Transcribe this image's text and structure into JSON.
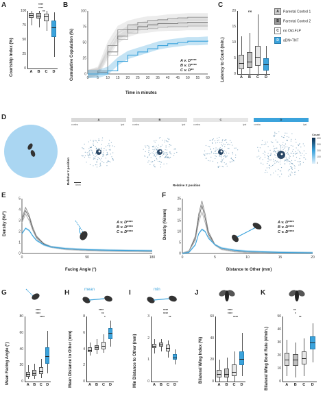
{
  "panels": {
    "A": {
      "letter": "A",
      "ylabel": "Courtship Index (%)",
      "yticks": [
        "0",
        "25",
        "50",
        "75",
        "100"
      ],
      "categories": [
        "A",
        "B",
        "C",
        "D"
      ],
      "sig": [
        "****",
        "****",
        "**"
      ]
    },
    "B": {
      "letter": "B",
      "ylabel": "Cumulative Copulation (%)",
      "xlabel": "Time in minutes",
      "yticks": [
        "0",
        "25",
        "50",
        "75",
        "100"
      ],
      "xticks": [
        "0",
        "5",
        "10",
        "15",
        "20",
        "25",
        "30",
        "35",
        "40",
        "45",
        "50",
        "55",
        "60"
      ],
      "stats": [
        {
          "label": "A v. D",
          "sig": "****"
        },
        {
          "label": "B v. D",
          "sig": "****"
        },
        {
          "label": "C v. D",
          "sig": "**"
        }
      ]
    },
    "C": {
      "letter": "C",
      "ylabel": "Latency to Court (min.)",
      "yticks": [
        "0",
        "5",
        "10",
        "15",
        "20"
      ],
      "categories": [
        "A",
        "B",
        "C",
        "D"
      ],
      "sig": [
        "ns"
      ]
    },
    "D": {
      "letter": "D",
      "ylabel": "Relative Y position",
      "xlabel": "Relative X position",
      "titles": [
        "A",
        "B",
        "C",
        "D"
      ],
      "contra": "contra",
      "ipsi": "ipsi",
      "scale": "5mm",
      "colorbar_title": "Count",
      "colorbar_ticks": [
        "400",
        "300",
        "200",
        "100",
        "0"
      ]
    },
    "E": {
      "letter": "E",
      "ylabel": "Density (%/°)",
      "xlabel": "Facing Angle (°)",
      "yticks": [
        "0",
        "1",
        "2",
        "3",
        "4",
        "5"
      ],
      "xticks": [
        "0",
        "90",
        "180"
      ],
      "stats": [
        {
          "label": "A v. D",
          "sig": "****"
        },
        {
          "label": "B v. D",
          "sig": "****"
        },
        {
          "label": "C v. D",
          "sig": "****"
        }
      ]
    },
    "F": {
      "letter": "F",
      "ylabel": "Density (%/mm)",
      "xlabel": "Distance to Other (mm)",
      "yticks": [
        "0",
        "5",
        "10",
        "15",
        "20",
        "25"
      ],
      "xticks": [
        "0",
        "5",
        "10",
        "15",
        "20"
      ],
      "stats": [
        {
          "label": "A v. D",
          "sig": "****"
        },
        {
          "label": "B v. D",
          "sig": "****"
        },
        {
          "label": "C v. D",
          "sig": "****"
        }
      ]
    },
    "G": {
      "letter": "G",
      "ylabel": "Mean Facing Angle (°)",
      "yticks": [
        "0",
        "20",
        "40",
        "60",
        "80"
      ],
      "categories": [
        "A",
        "B",
        "C",
        "D"
      ],
      "sig": [
        "****",
        "****",
        "****"
      ]
    },
    "H": {
      "letter": "H",
      "ylabel": "Mean Distance to Other (mm)",
      "yticks": [
        "0",
        "2",
        "4",
        "6",
        "8"
      ],
      "categories": [
        "A",
        "B",
        "C",
        "D"
      ],
      "sig": [
        "****",
        "**",
        "*"
      ],
      "icon_label": "mean"
    },
    "I": {
      "letter": "I",
      "ylabel": "Min Distance to Other (mm)",
      "yticks": [
        "0",
        "1",
        "2",
        "3"
      ],
      "categories": [
        "A",
        "B",
        "C",
        "D"
      ],
      "sig": [
        "****",
        "****",
        "**"
      ],
      "icon_label": "min"
    },
    "J": {
      "letter": "J",
      "ylabel": "Bilateral Wing Index (%)",
      "yticks": [
        "0",
        "20",
        "40",
        "60"
      ],
      "categories": [
        "A",
        "B",
        "C",
        "D"
      ],
      "sig": [
        "****",
        "****",
        "****"
      ]
    },
    "K": {
      "letter": "K",
      "ylabel": "Bilateral Wing Bout Rate (#/min.)",
      "yticks": [
        "0",
        "10",
        "20",
        "30",
        "40",
        "50"
      ],
      "categories": [
        "A",
        "B",
        "C",
        "D"
      ],
      "sig": [
        "**",
        "*",
        "**"
      ]
    }
  },
  "legend": [
    {
      "key": "A",
      "label": "Parental Control 1",
      "color": "#cccccc"
    },
    {
      "key": "B",
      "label": "Parental Control 2",
      "color": "#999999"
    },
    {
      "key": "C",
      "label": "no Otd-FLP",
      "color": "#ffffff"
    },
    {
      "key": "D",
      "label": "aDN>TNT",
      "color": "#3ba3dc"
    }
  ],
  "colors": {
    "A": "#d9d9d9",
    "B": "#bfbfbf",
    "C": "#e8e8e8",
    "D": "#3ba3dc",
    "axis": "#333333"
  },
  "chart_data": [
    {
      "type": "box",
      "panel": "A",
      "ylabel": "Courtship Index (%)",
      "categories": [
        "A",
        "B",
        "C",
        "D"
      ],
      "stats": [
        {
          "q1": 88,
          "median": 93,
          "q3": 97,
          "lo": 75,
          "hi": 100
        },
        {
          "q1": 87,
          "median": 92,
          "q3": 96,
          "lo": 72,
          "hi": 100
        },
        {
          "q1": 82,
          "median": 90,
          "q3": 95,
          "lo": 65,
          "hi": 100
        },
        {
          "q1": 55,
          "median": 72,
          "q3": 83,
          "lo": 20,
          "hi": 98
        }
      ]
    },
    {
      "type": "line",
      "panel": "B",
      "title": "",
      "xlabel": "Time in minutes",
      "ylabel": "Cumulative Copulation (%)",
      "x": [
        0,
        5,
        10,
        15,
        20,
        25,
        30,
        35,
        40,
        45,
        50,
        55,
        60
      ],
      "series": [
        {
          "name": "A",
          "values": [
            0,
            5,
            45,
            70,
            78,
            82,
            85,
            86,
            88,
            89,
            90,
            90,
            90
          ]
        },
        {
          "name": "B",
          "values": [
            0,
            3,
            35,
            60,
            70,
            75,
            78,
            80,
            80,
            81,
            82,
            82,
            82
          ]
        },
        {
          "name": "C",
          "values": [
            0,
            2,
            30,
            55,
            65,
            70,
            72,
            74,
            75,
            75,
            76,
            76,
            76
          ]
        },
        {
          "name": "D",
          "values": [
            0,
            0,
            5,
            20,
            30,
            35,
            40,
            45,
            48,
            50,
            52,
            52,
            53
          ]
        }
      ],
      "ylim": [
        0,
        100
      ]
    },
    {
      "type": "box",
      "panel": "C",
      "ylabel": "Latency to Court (min.)",
      "categories": [
        "A",
        "B",
        "C",
        "D"
      ],
      "stats": [
        {
          "q1": 1.5,
          "median": 3.5,
          "q3": 6,
          "lo": 0,
          "hi": 12
        },
        {
          "q1": 2,
          "median": 4,
          "q3": 7,
          "lo": 0,
          "hi": 13
        },
        {
          "q1": 2.5,
          "median": 5.5,
          "q3": 9,
          "lo": 0,
          "hi": 19
        },
        {
          "q1": 1,
          "median": 3,
          "q3": 5,
          "lo": 0,
          "hi": 9
        }
      ]
    },
    {
      "type": "line",
      "panel": "E",
      "xlabel": "Facing Angle (°)",
      "ylabel": "Density (%/°)",
      "x": [
        0,
        5,
        10,
        15,
        20,
        30,
        40,
        60,
        90,
        120,
        150,
        180
      ],
      "series": [
        {
          "name": "A",
          "values": [
            3.2,
            4.2,
            3.5,
            2.4,
            1.6,
            0.9,
            0.6,
            0.4,
            0.3,
            0.25,
            0.22,
            0.2
          ]
        },
        {
          "name": "B",
          "values": [
            3.0,
            3.9,
            3.3,
            2.2,
            1.5,
            0.9,
            0.6,
            0.4,
            0.3,
            0.25,
            0.22,
            0.2
          ]
        },
        {
          "name": "C",
          "values": [
            2.8,
            3.6,
            3.0,
            2.1,
            1.4,
            0.8,
            0.6,
            0.4,
            0.3,
            0.25,
            0.22,
            0.2
          ]
        },
        {
          "name": "D",
          "values": [
            1.8,
            2.3,
            2.1,
            1.6,
            1.2,
            0.8,
            0.6,
            0.45,
            0.35,
            0.3,
            0.27,
            0.25
          ]
        }
      ],
      "ylim": [
        0,
        5
      ]
    },
    {
      "type": "line",
      "panel": "F",
      "xlabel": "Distance to Other (mm)",
      "ylabel": "Density (%/mm)",
      "x": [
        0,
        1,
        2,
        2.5,
        3,
        3.5,
        4,
        5,
        6,
        8,
        10,
        15,
        20
      ],
      "series": [
        {
          "name": "A",
          "values": [
            0,
            1,
            8,
            18,
            24,
            18,
            10,
            4,
            2,
            1,
            0.6,
            0.3,
            0.2
          ]
        },
        {
          "name": "B",
          "values": [
            0,
            1,
            7,
            16,
            22,
            16,
            9,
            4,
            2,
            1,
            0.6,
            0.3,
            0.2
          ]
        },
        {
          "name": "C",
          "values": [
            0,
            1,
            6,
            14,
            19,
            14,
            8,
            4,
            2,
            1,
            0.6,
            0.3,
            0.2
          ]
        },
        {
          "name": "D",
          "values": [
            0,
            0.5,
            4,
            9,
            11,
            10,
            7,
            4,
            2.5,
            1.5,
            1,
            0.5,
            0.3
          ]
        }
      ],
      "ylim": [
        0,
        25
      ]
    },
    {
      "type": "box",
      "panel": "G",
      "ylabel": "Mean Facing Angle (°)",
      "categories": [
        "A",
        "B",
        "C",
        "D"
      ],
      "stats": [
        {
          "q1": 6,
          "median": 9,
          "q3": 12,
          "lo": 3,
          "hi": 20
        },
        {
          "q1": 7,
          "median": 10,
          "q3": 14,
          "lo": 3,
          "hi": 22
        },
        {
          "q1": 9,
          "median": 13,
          "q3": 18,
          "lo": 4,
          "hi": 28
        },
        {
          "q1": 22,
          "median": 31,
          "q3": 42,
          "lo": 10,
          "hi": 62
        }
      ]
    },
    {
      "type": "box",
      "panel": "H",
      "ylabel": "Mean Distance to Other (mm)",
      "categories": [
        "A",
        "B",
        "C",
        "D"
      ],
      "stats": [
        {
          "q1": 3.6,
          "median": 3.9,
          "q3": 4.2,
          "lo": 3.2,
          "hi": 4.8
        },
        {
          "q1": 3.9,
          "median": 4.2,
          "q3": 4.5,
          "lo": 3.4,
          "hi": 5.2
        },
        {
          "q1": 4.0,
          "median": 4.4,
          "q3": 4.9,
          "lo": 3.5,
          "hi": 5.8
        },
        {
          "q1": 5.2,
          "median": 6.0,
          "q3": 6.6,
          "lo": 4.3,
          "hi": 7.5
        }
      ]
    },
    {
      "type": "box",
      "panel": "I",
      "ylabel": "Min Distance to Other (mm)",
      "categories": [
        "A",
        "B",
        "C",
        "D"
      ],
      "stats": [
        {
          "q1": 1.55,
          "median": 1.65,
          "q3": 1.75,
          "lo": 1.3,
          "hi": 1.95
        },
        {
          "q1": 1.6,
          "median": 1.7,
          "q3": 1.8,
          "lo": 1.4,
          "hi": 1.95
        },
        {
          "q1": 1.4,
          "median": 1.55,
          "q3": 1.7,
          "lo": 1.1,
          "hi": 1.9
        },
        {
          "q1": 1.0,
          "median": 1.1,
          "q3": 1.25,
          "lo": 0.8,
          "hi": 1.5
        }
      ]
    },
    {
      "type": "box",
      "panel": "J",
      "ylabel": "Bilateral Wing Index (%)",
      "categories": [
        "A",
        "B",
        "C",
        "D"
      ],
      "stats": [
        {
          "q1": 4,
          "median": 7,
          "q3": 11,
          "lo": 0,
          "hi": 20
        },
        {
          "q1": 4,
          "median": 7,
          "q3": 12,
          "lo": 0,
          "hi": 22
        },
        {
          "q1": 5,
          "median": 9,
          "q3": 16,
          "lo": 0,
          "hi": 28
        },
        {
          "q1": 15,
          "median": 21,
          "q3": 28,
          "lo": 5,
          "hi": 45
        }
      ]
    },
    {
      "type": "box",
      "panel": "K",
      "ylabel": "Bilateral Wing Bout Rate (#/min.)",
      "categories": [
        "A",
        "B",
        "C",
        "D"
      ],
      "stats": [
        {
          "q1": 12,
          "median": 17,
          "q3": 22,
          "lo": 4,
          "hi": 32
        },
        {
          "q1": 12,
          "median": 17,
          "q3": 21,
          "lo": 3,
          "hi": 30
        },
        {
          "q1": 13,
          "median": 18,
          "q3": 23,
          "lo": 4,
          "hi": 33
        },
        {
          "q1": 25,
          "median": 30,
          "q3": 35,
          "lo": 15,
          "hi": 45
        }
      ]
    }
  ]
}
